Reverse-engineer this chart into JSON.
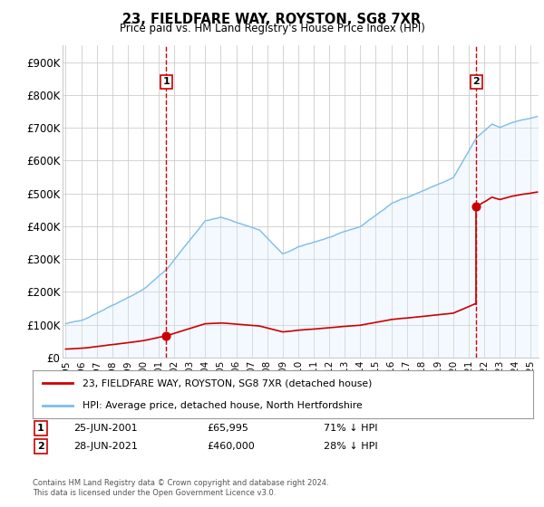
{
  "title": "23, FIELDFARE WAY, ROYSTON, SG8 7XR",
  "subtitle": "Price paid vs. HM Land Registry's House Price Index (HPI)",
  "hpi_label": "HPI: Average price, detached house, North Hertfordshire",
  "price_label": "23, FIELDFARE WAY, ROYSTON, SG8 7XR (detached house)",
  "footer": "Contains HM Land Registry data © Crown copyright and database right 2024.\nThis data is licensed under the Open Government Licence v3.0.",
  "transactions": [
    {
      "id": 1,
      "date": "25-JUN-2001",
      "price": 65995,
      "pct": "71% ↓ HPI",
      "x": 2001.49
    },
    {
      "id": 2,
      "date": "28-JUN-2021",
      "price": 460000,
      "pct": "28% ↓ HPI",
      "x": 2021.49
    }
  ],
  "hpi_color": "#7dbde8",
  "hpi_fill_color": "#ddeeff",
  "price_color": "#cc0000",
  "dashed_color": "#cc0000",
  "ylim": [
    0,
    950000
  ],
  "yticks": [
    0,
    100000,
    200000,
    300000,
    400000,
    500000,
    600000,
    700000,
    800000,
    900000
  ],
  "ytick_labels": [
    "£0",
    "£100K",
    "£200K",
    "£300K",
    "£400K",
    "£500K",
    "£600K",
    "£700K",
    "£800K",
    "£900K"
  ],
  "xlim_start": 1994.8,
  "xlim_end": 2025.5,
  "background_color": "#ffffff",
  "grid_color": "#cccccc",
  "hpi_base_year": 1995.5,
  "hpi_base_value": 103000,
  "sale1_year": 2001.49,
  "sale1_price": 65995,
  "sale2_year": 2021.49,
  "sale2_price": 460000
}
